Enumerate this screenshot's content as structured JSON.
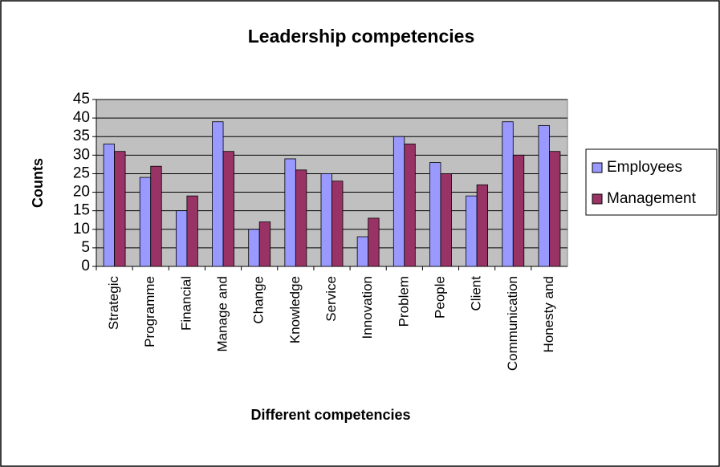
{
  "chart_data": {
    "type": "bar",
    "title": "Leadership competencies",
    "x_label": "Different competencies",
    "y_label": "Counts",
    "categories": [
      "Strategic",
      "Programme",
      "Financial",
      "Manage and",
      "Change",
      "Knowledge",
      "Service",
      "Innovation",
      "Problem",
      "People",
      "Client",
      "Communication",
      "Honesty and"
    ],
    "series": [
      {
        "name": "Employees",
        "color": "#9999ff",
        "values": [
          33,
          24,
          15,
          39,
          10,
          29,
          25,
          8,
          35,
          28,
          19,
          39,
          38
        ]
      },
      {
        "name": "Management",
        "color": "#993366",
        "values": [
          31,
          27,
          19,
          31,
          12,
          26,
          23,
          13,
          33,
          25,
          22,
          30,
          31
        ]
      }
    ],
    "ylim": [
      0,
      45
    ],
    "yticks": [
      0,
      5,
      10,
      15,
      20,
      25,
      30,
      35,
      40,
      45
    ],
    "grid": true,
    "legend": "right"
  }
}
